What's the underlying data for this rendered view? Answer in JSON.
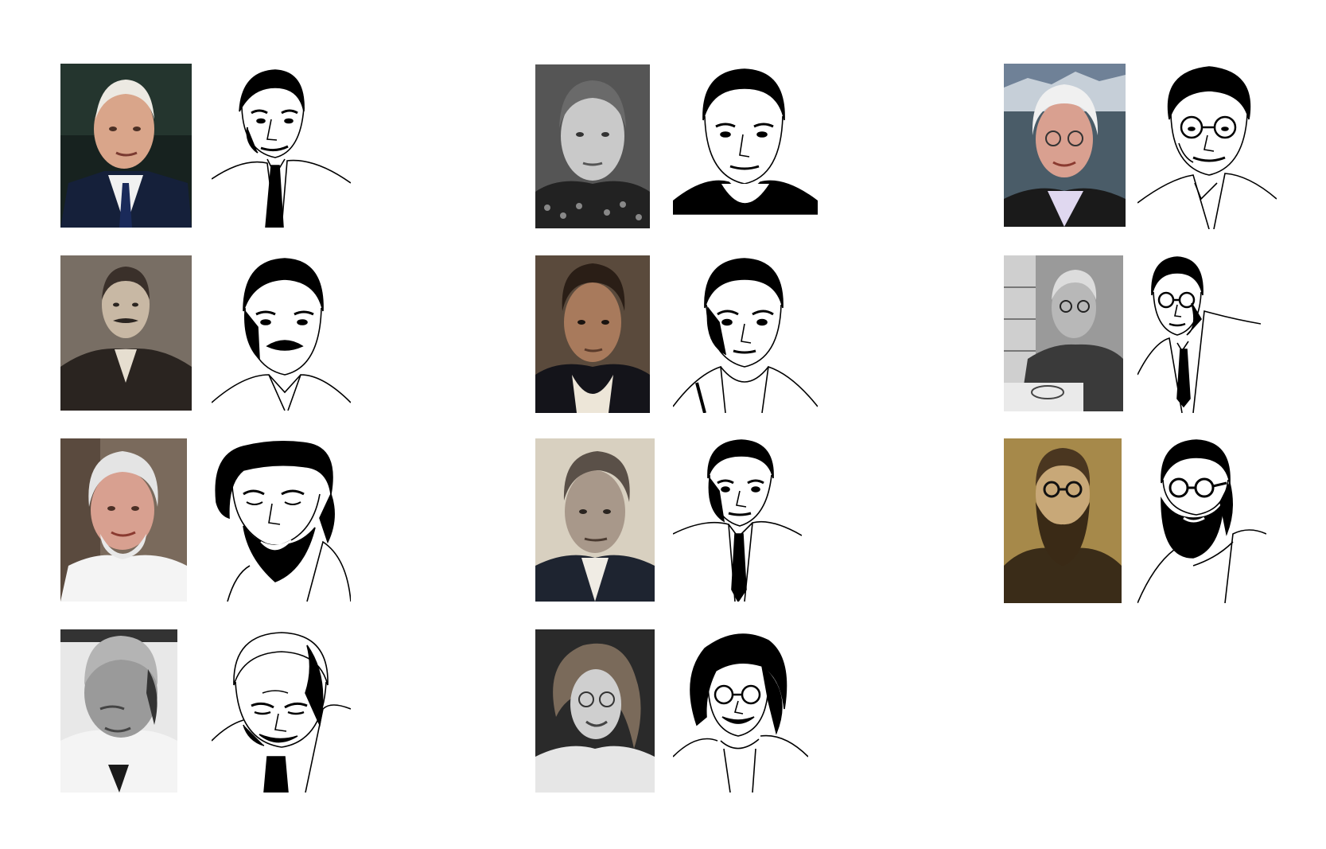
{
  "portraits": [
    {
      "photo": "portrait-photo-elderly-man-suit-tie",
      "drawing": "line-drawing-elderly-man-suit-tie",
      "photo_bg": "#1f2a2a",
      "tone": "color"
    },
    {
      "photo": "portrait-photo-man-patterned-sweater",
      "drawing": "line-drawing-man-sweater",
      "photo_bg": "#3a3a3a",
      "tone": "grayscale"
    },
    {
      "photo": "portrait-photo-white-haired-man-glasses",
      "drawing": "line-drawing-man-glasses-open-collar",
      "photo_bg": "#6f8197",
      "tone": "color"
    },
    {
      "photo": "portrait-photo-man-mustache-vintage",
      "drawing": "line-drawing-man-mustache",
      "photo_bg": "#6b6259",
      "tone": "sepia"
    },
    {
      "photo": "portrait-painting-man-historical",
      "drawing": "line-drawing-man-historical-collar",
      "photo_bg": "#4a3b30",
      "tone": "painting"
    },
    {
      "photo": "portrait-photo-man-glasses-drawing-desk",
      "drawing": "line-drawing-man-glasses-tie",
      "photo_bg": "#8a8a8a",
      "tone": "grayscale"
    },
    {
      "photo": "portrait-photo-smiling-bearded-man",
      "drawing": "line-drawing-bearded-man-smiling",
      "photo_bg": "#a08070",
      "tone": "color"
    },
    {
      "photo": "portrait-photo-man-suit-vintage",
      "drawing": "line-drawing-man-suit-tie",
      "photo_bg": "#d8d0c0",
      "tone": "sepia"
    },
    {
      "photo": "portrait-photo-bearded-man-round-glasses",
      "drawing": "line-drawing-bearded-man-round-glasses",
      "photo_bg": "#b99b58",
      "tone": "sepia"
    },
    {
      "photo": "portrait-photo-bald-man-looking-down",
      "drawing": "line-drawing-bald-man-looking-down",
      "photo_bg": "#e8e8e8",
      "tone": "grayscale"
    },
    {
      "photo": "portrait-photo-woman-curly-hair-glasses",
      "drawing": "line-drawing-woman-curly-hair-glasses",
      "photo_bg": "#2a2a2a",
      "tone": "grayscale"
    }
  ]
}
